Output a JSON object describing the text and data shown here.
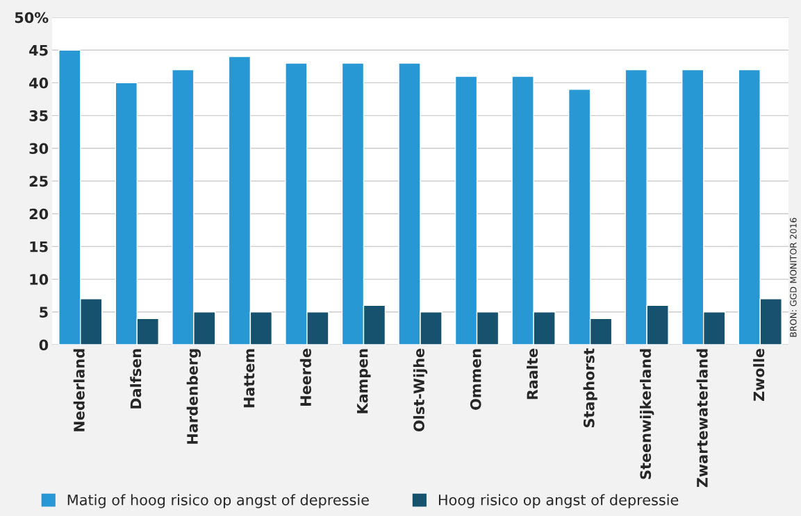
{
  "chart_data": {
    "type": "bar",
    "categories": [
      "Nederland",
      "Dalfsen",
      "Hardenberg",
      "Hattem",
      "Heerde",
      "Kampen",
      "Olst-Wijhe",
      "Ommen",
      "Raalte",
      "Staphorst",
      "Steenwijkerland",
      "Zwartewaterland",
      "Zwolle"
    ],
    "series": [
      {
        "name": "Matig of hoog risico op angst of depressie",
        "color": "#2898d4",
        "values": [
          45,
          40,
          42,
          44,
          43,
          43,
          43,
          41,
          41,
          39,
          42,
          42,
          42
        ]
      },
      {
        "name": "Hoog risico op angst of depressie",
        "color": "#16526e",
        "values": [
          7,
          4,
          5,
          5,
          5,
          6,
          5,
          5,
          5,
          4,
          6,
          5,
          7
        ]
      }
    ],
    "ylim": [
      0,
      50
    ],
    "yticks": [
      0,
      5,
      10,
      15,
      20,
      25,
      30,
      35,
      40,
      45,
      {
        "value": 50,
        "label": "50%"
      }
    ],
    "grid": "y",
    "legend": "bottom",
    "annotations": [
      "BRON: GGD MONITOR 2016"
    ]
  }
}
